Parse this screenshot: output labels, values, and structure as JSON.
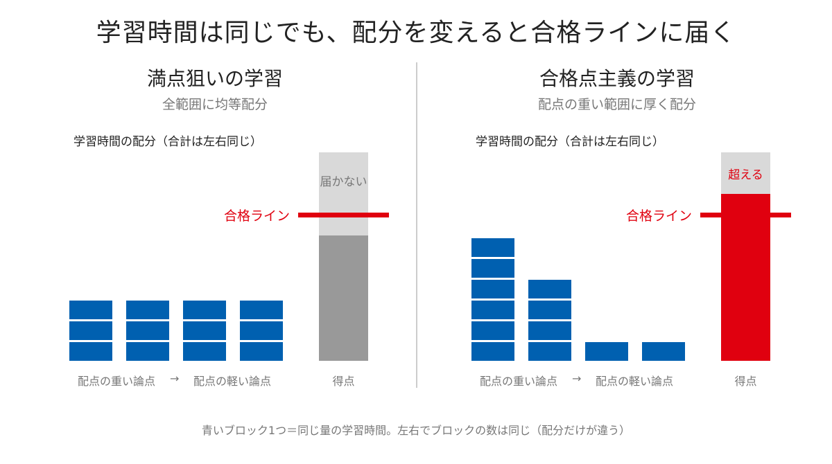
{
  "title": "学習時間は同じでも、配分を変えると合格ラインに届く",
  "panels": [
    {
      "heading": "満点狙いの学習",
      "subheading": "全範囲に均等配分",
      "chart_label": "学習時間の配分（合計は左右同じ）",
      "blocks_per_topic": [
        3,
        3,
        3,
        3
      ],
      "score_fraction": 0.6,
      "pass_fraction": 0.7,
      "pass_label": "合格ライン",
      "status_label": "届かない",
      "x_label_left": "配点の重い論点",
      "x_arrow": "→",
      "x_label_right": "配点の軽い論点",
      "score_label": "得点",
      "score_color": "#999999",
      "status_color": "#777777"
    },
    {
      "heading": "合格点主義の学習",
      "subheading": "配点の重い範囲に厚く配分",
      "chart_label": "学習時間の配分（合計は左右同じ）",
      "blocks_per_topic": [
        6,
        4,
        1,
        1
      ],
      "score_fraction": 0.8,
      "pass_fraction": 0.7,
      "pass_label": "合格ライン",
      "status_label": "超える",
      "x_label_left": "配点の重い論点",
      "x_arrow": "→",
      "x_label_right": "配点の軽い論点",
      "score_label": "得点",
      "score_color": "#e0000f",
      "status_color": "#e0000f"
    }
  ],
  "colors": {
    "block": "#0060b0",
    "pass_line": "#e0000f",
    "unreached": "#d9d9d9"
  },
  "footer": "青いブロック1つ＝同じ量の学習時間。左右でブロックの数は同じ（配分だけが違う）"
}
